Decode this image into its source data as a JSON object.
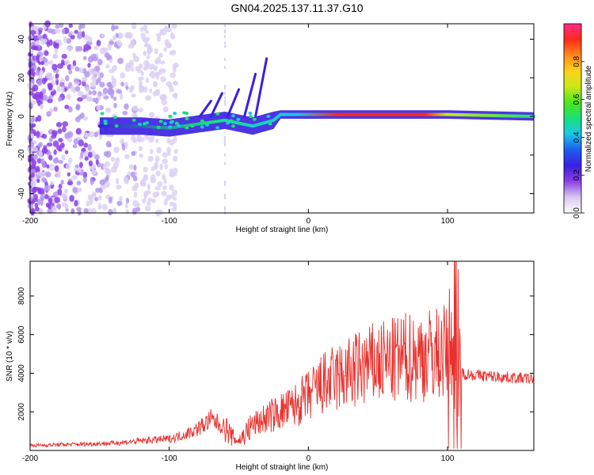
{
  "title": "GN04.2025.137.11.37.G10",
  "colors": {
    "snr_line": "#e8302c",
    "axis": "#000000"
  },
  "chart_data": [
    {
      "type": "heatmap",
      "title": "GN04.2025.137.11.37.G10",
      "xlabel": "Height of straight line (km)",
      "ylabel": "Frequency (Hz)",
      "xlim": [
        -200,
        162
      ],
      "ylim": [
        -50,
        48
      ],
      "xticks": [
        -200,
        -100,
        0,
        100
      ],
      "yticks": [
        -40,
        -20,
        0,
        20,
        40
      ],
      "colorbar": {
        "label": "Normalized spectral amplitude",
        "range": [
          0,
          1
        ],
        "ticks": [
          "0.0",
          "0.2",
          "0.4",
          "0.6",
          "0.8"
        ],
        "colormap": [
          "#ffffff",
          "#d6c8ef",
          "#8b3fe6",
          "#3a1fe0",
          "#1f5cf0",
          "#18c8e8",
          "#19e07a",
          "#4de61a",
          "#c8e81a",
          "#ffd21a",
          "#ff8a1a",
          "#ff2a1a",
          "#ff2a88"
        ]
      },
      "ridge": {
        "description_points_x": [
          -150,
          -120,
          -100,
          -80,
          -60,
          -40,
          -25,
          -20,
          0,
          40,
          80,
          100,
          162
        ],
        "peak_frequency_hz": [
          -5,
          -5,
          -6,
          -4,
          -2,
          -5,
          -2,
          1,
          1,
          1,
          1,
          1,
          0
        ],
        "amplitude": [
          0.35,
          0.4,
          0.45,
          0.5,
          0.45,
          0.5,
          0.7,
          0.9,
          0.95,
          0.95,
          0.95,
          0.9,
          0.55
        ]
      }
    },
    {
      "type": "line",
      "xlabel": "Height of straight line (km)",
      "ylabel": "SNR (10 * v/v)",
      "xlim": [
        -200,
        162
      ],
      "ylim": [
        0,
        9800
      ],
      "xticks": [
        -200,
        -100,
        0,
        100
      ],
      "yticks": [
        2000,
        4000,
        6000,
        8000
      ],
      "x": [
        -200,
        -180,
        -160,
        -140,
        -120,
        -100,
        -90,
        -80,
        -70,
        -60,
        -55,
        -50,
        -40,
        -30,
        -20,
        -10,
        0,
        10,
        20,
        30,
        40,
        50,
        60,
        70,
        80,
        90,
        100,
        104,
        106,
        108,
        110,
        120,
        140,
        162
      ],
      "y": [
        250,
        300,
        330,
        380,
        500,
        600,
        800,
        1100,
        1600,
        1200,
        700,
        500,
        1300,
        1700,
        2000,
        2300,
        2800,
        3400,
        3700,
        4000,
        4300,
        4500,
        4600,
        4800,
        4900,
        5000,
        5100,
        5500,
        9800,
        4600,
        4000,
        3900,
        3800,
        3700
      ]
    }
  ]
}
